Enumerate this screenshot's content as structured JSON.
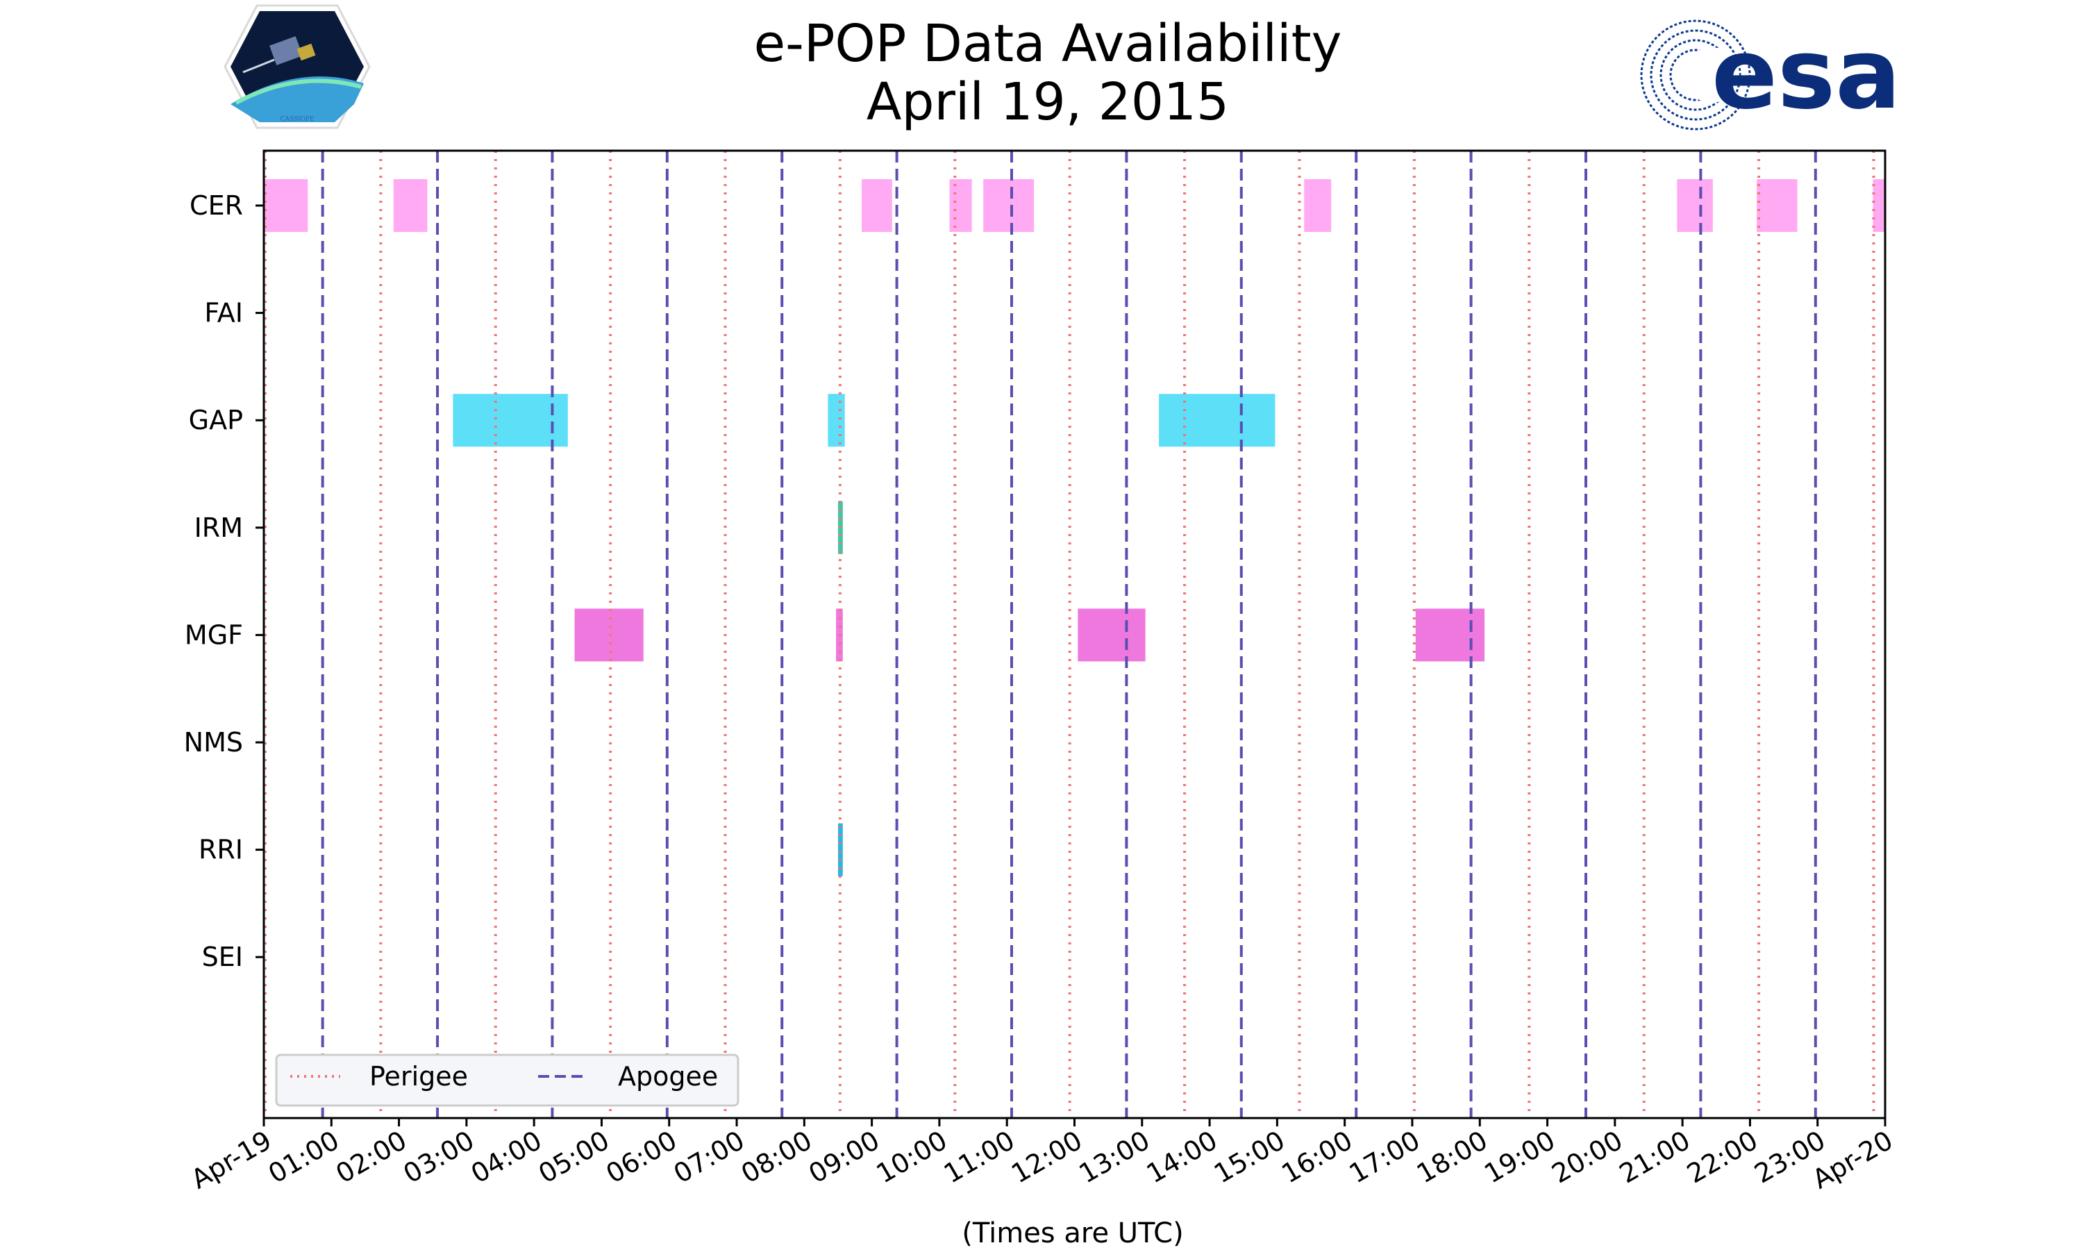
{
  "chart_data": {
    "type": "timeline",
    "title": "e-POP Data Availability",
    "subtitle": "April 19, 2015",
    "xlabel": "(Times are UTC)",
    "ylabel": "",
    "x_range_hours": [
      0,
      24
    ],
    "x_tick_labels": [
      "Apr-19",
      "01:00",
      "02:00",
      "03:00",
      "04:00",
      "05:00",
      "06:00",
      "07:00",
      "08:00",
      "09:00",
      "10:00",
      "11:00",
      "12:00",
      "13:00",
      "14:00",
      "15:00",
      "16:00",
      "17:00",
      "18:00",
      "19:00",
      "20:00",
      "21:00",
      "22:00",
      "23:00",
      "Apr-20"
    ],
    "instruments": [
      "CER",
      "FAI",
      "GAP",
      "IRM",
      "MGF",
      "NMS",
      "RRI",
      "SEI"
    ],
    "intervals": [
      {
        "instrument": "CER",
        "start": 0.0,
        "end": 0.65,
        "color": "#ffaaf2"
      },
      {
        "instrument": "CER",
        "start": 1.92,
        "end": 2.42,
        "color": "#ffaaf2"
      },
      {
        "instrument": "CER",
        "start": 8.85,
        "end": 9.3,
        "color": "#ffaaf2"
      },
      {
        "instrument": "CER",
        "start": 10.15,
        "end": 10.48,
        "color": "#ffaaf2"
      },
      {
        "instrument": "CER",
        "start": 10.65,
        "end": 11.4,
        "color": "#ffaaf2"
      },
      {
        "instrument": "CER",
        "start": 15.4,
        "end": 15.8,
        "color": "#ffaaf2"
      },
      {
        "instrument": "CER",
        "start": 20.92,
        "end": 21.45,
        "color": "#ffaaf2"
      },
      {
        "instrument": "CER",
        "start": 22.1,
        "end": 22.7,
        "color": "#ffaaf2"
      },
      {
        "instrument": "CER",
        "start": 23.82,
        "end": 24.0,
        "color": "#ffaaf2"
      },
      {
        "instrument": "GAP",
        "start": 2.8,
        "end": 4.5,
        "color": "#5edff8"
      },
      {
        "instrument": "GAP",
        "start": 8.35,
        "end": 8.6,
        "color": "#5edff8"
      },
      {
        "instrument": "GAP",
        "start": 13.25,
        "end": 14.97,
        "color": "#5edff8"
      },
      {
        "instrument": "IRM",
        "start": 8.5,
        "end": 8.57,
        "color": "#3dc9a3"
      },
      {
        "instrument": "MGF",
        "start": 4.6,
        "end": 5.62,
        "color": "#ee78de"
      },
      {
        "instrument": "MGF",
        "start": 8.47,
        "end": 8.57,
        "color": "#ee78de"
      },
      {
        "instrument": "MGF",
        "start": 12.05,
        "end": 13.05,
        "color": "#ee78de"
      },
      {
        "instrument": "MGF",
        "start": 17.05,
        "end": 18.07,
        "color": "#ee78de"
      },
      {
        "instrument": "RRI",
        "start": 8.5,
        "end": 8.57,
        "color": "#29b6e0"
      }
    ],
    "perigee_hours": [
      0.02,
      1.73,
      3.43,
      5.13,
      6.83,
      8.53,
      10.23,
      11.93,
      13.63,
      15.33,
      17.03,
      18.73,
      20.43,
      22.13,
      23.83
    ],
    "apogee_hours": [
      0.87,
      2.57,
      4.27,
      5.97,
      7.67,
      9.37,
      11.07,
      12.77,
      14.47,
      16.17,
      17.87,
      19.57,
      21.27,
      22.97
    ],
    "legend": [
      {
        "label": "Perigee",
        "style": "dotted",
        "color": "#f07474"
      },
      {
        "label": "Apogee",
        "style": "dashed",
        "color": "#5a4fb0"
      }
    ],
    "legend_position": "lower-left"
  },
  "logos": {
    "left_caption": "CASSIOPE",
    "right_text": "esa"
  }
}
